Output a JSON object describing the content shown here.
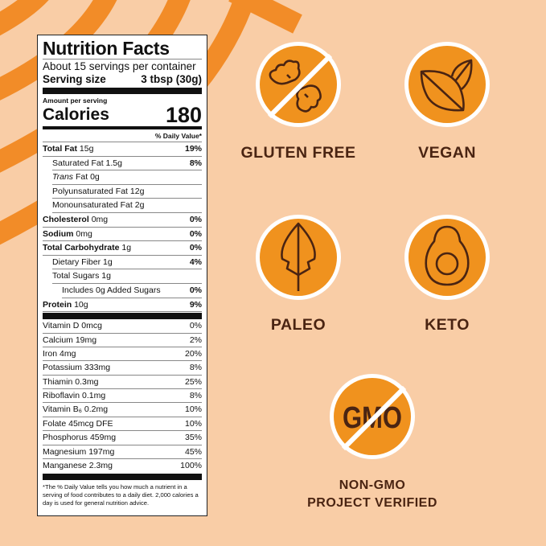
{
  "colors": {
    "background": "#f9cda6",
    "stripe": "#f28c28",
    "badge": "#f0921e",
    "ink": "#4a2412"
  },
  "label": {
    "title": "Nutrition Facts",
    "servings": "About 15 servings per container",
    "serving_size_label": "Serving size",
    "serving_size_value": "3 tbsp (30g)",
    "amount_per_serving": "Amount per serving",
    "calories_label": "Calories",
    "calories_value": "180",
    "daily_value_header": "% Daily Value*",
    "nutrients": [
      {
        "name": "Total Fat",
        "amount": "15g",
        "dv": "19%"
      },
      {
        "name": "Saturated Fat",
        "amount": "1.5g",
        "dv": "8%"
      },
      {
        "name": "Trans",
        "amount": "Fat 0g",
        "dv": ""
      },
      {
        "name": "Polyunsaturated Fat",
        "amount": "12g",
        "dv": ""
      },
      {
        "name": "Monounsaturated Fat",
        "amount": "2g",
        "dv": ""
      },
      {
        "name": "Cholesterol",
        "amount": "0mg",
        "dv": "0%"
      },
      {
        "name": "Sodium",
        "amount": "0mg",
        "dv": "0%"
      },
      {
        "name": "Total Carbohydrate",
        "amount": "1g",
        "dv": "0%"
      },
      {
        "name": "Dietary Fiber",
        "amount": "1g",
        "dv": "4%"
      },
      {
        "name": "Total Sugars",
        "amount": "1g",
        "dv": ""
      },
      {
        "name": "Includes 0g Added Sugars",
        "amount": "",
        "dv": "0%"
      },
      {
        "name": "Protein",
        "amount": "10g",
        "dv": "9%"
      }
    ],
    "vitamins": [
      {
        "name": "Vitamin D 0mcg",
        "dv": "0%"
      },
      {
        "name": "Calcium 19mg",
        "dv": "2%"
      },
      {
        "name": "Iron 4mg",
        "dv": "20%"
      },
      {
        "name": "Potassium 333mg",
        "dv": "8%"
      },
      {
        "name": "Thiamin 0.3mg",
        "dv": "25%"
      },
      {
        "name": "Riboflavin 0.1mg",
        "dv": "8%"
      },
      {
        "name": "Vitamin B₆ 0.2mg",
        "dv": "10%"
      },
      {
        "name": "Folate 45mcg DFE",
        "dv": "10%"
      },
      {
        "name": "Phosphorus 459mg",
        "dv": "35%"
      },
      {
        "name": "Magnesium 197mg",
        "dv": "45%"
      },
      {
        "name": "Manganese 2.3mg",
        "dv": "100%"
      }
    ],
    "footnote": "*The % Daily Value tells you how much a nutrient in a serving of food contributes to a daily diet. 2,000 calories a day is used for general nutrition advice."
  },
  "badges": {
    "gluten_free": "GLUTEN FREE",
    "vegan": "VEGAN",
    "paleo": "PALEO",
    "keto": "KETO",
    "gmo_text": "GMO",
    "non_gmo_line1": "NON-GMO",
    "non_gmo_line2": "PROJECT VERIFIED"
  }
}
